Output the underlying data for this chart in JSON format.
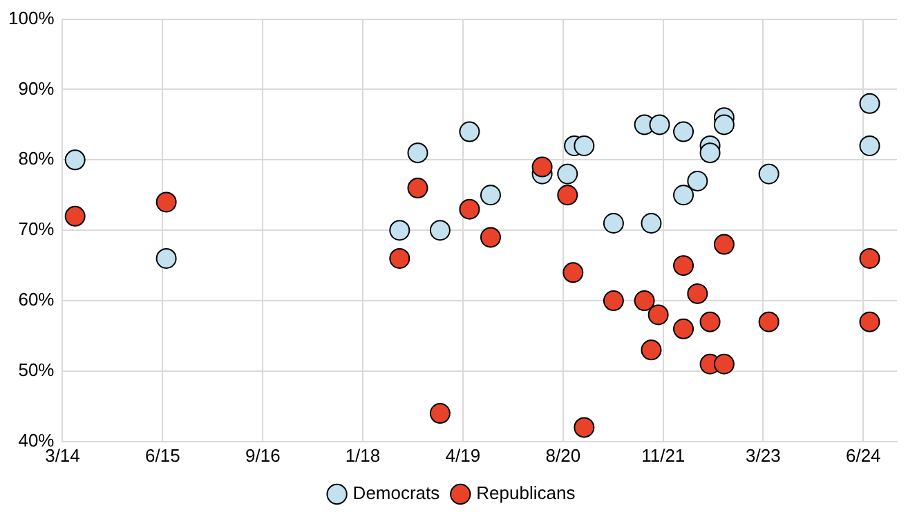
{
  "chart_data": {
    "type": "scatter",
    "xlim": [
      "2014-03-01",
      "2024-11-19"
    ],
    "xticks": [
      {
        "value": "2014-03-01",
        "label": "3/14"
      },
      {
        "value": "2015-06-14",
        "label": "6/15"
      },
      {
        "value": "2016-09-26",
        "label": "9/16"
      },
      {
        "value": "2018-01-08",
        "label": "1/18"
      },
      {
        "value": "2019-04-23",
        "label": "4/19"
      },
      {
        "value": "2020-08-05",
        "label": "8/20"
      },
      {
        "value": "2021-11-18",
        "label": "11/21"
      },
      {
        "value": "2023-03-02",
        "label": "3/23"
      },
      {
        "value": "2024-06-14",
        "label": "6/24"
      }
    ],
    "ylim": [
      40,
      100
    ],
    "yticks": [
      {
        "value": 40,
        "label": "40%"
      },
      {
        "value": 50,
        "label": "50%"
      },
      {
        "value": 60,
        "label": "60%"
      },
      {
        "value": 70,
        "label": "70%"
      },
      {
        "value": 80,
        "label": "80%"
      },
      {
        "value": 90,
        "label": "90%"
      },
      {
        "value": 100,
        "label": "100%"
      }
    ],
    "grid": true,
    "legend": "bottom",
    "marker": "circle",
    "series": [
      {
        "name": "Democrats",
        "color": "#c3e1ef",
        "x": [
          "2014-04-29",
          "2015-07-01",
          "2018-06-30",
          "2018-09-23",
          "2019-01-06",
          "2019-05-24",
          "2019-08-31",
          "2020-04-29",
          "2020-08-26",
          "2020-09-27",
          "2020-11-12",
          "2021-03-30",
          "2021-08-22",
          "2021-09-23",
          "2021-11-01",
          "2022-02-21",
          "2022-02-21",
          "2022-04-28",
          "2022-06-26",
          "2022-06-26",
          "2022-08-31",
          "2022-08-31",
          "2023-03-29",
          "2024-07-14",
          "2024-07-14"
        ],
        "values": [
          80,
          66,
          70,
          81,
          70,
          84,
          75,
          78,
          78,
          82,
          82,
          71,
          85,
          71,
          85,
          84,
          75,
          77,
          82,
          81,
          86,
          85,
          78,
          88,
          82
        ]
      },
      {
        "name": "Republicans",
        "color": "#e8432a",
        "x": [
          "2014-04-29",
          "2015-07-01",
          "2018-06-30",
          "2018-09-23",
          "2019-01-06",
          "2019-05-24",
          "2019-08-31",
          "2020-04-29",
          "2020-08-26",
          "2020-09-21",
          "2020-11-12",
          "2021-03-30",
          "2021-08-22",
          "2021-09-23",
          "2021-10-26",
          "2022-02-21",
          "2022-02-21",
          "2022-04-28",
          "2022-06-26",
          "2022-06-26",
          "2022-08-31",
          "2022-08-31",
          "2023-03-29",
          "2024-07-14",
          "2024-07-14"
        ],
        "values": [
          72,
          74,
          66,
          76,
          44,
          73,
          69,
          79,
          75,
          64,
          42,
          60,
          60,
          53,
          58,
          65,
          56,
          61,
          57,
          51,
          68,
          51,
          57,
          66,
          57
        ]
      }
    ]
  }
}
